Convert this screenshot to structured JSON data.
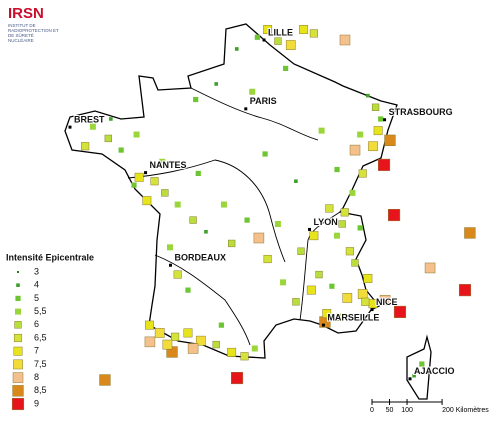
{
  "logo": {
    "name": "IRSN",
    "subtitle": "INSTITUT DE RADIOPROTECTION ET DE SÛRETÉ NUCLÉAIRE"
  },
  "cities": [
    {
      "name": "LILLE",
      "lon": 3.06,
      "lat": 50.63
    },
    {
      "name": "PARIS",
      "lon": 2.35,
      "lat": 48.86
    },
    {
      "name": "BREST",
      "lon": -4.49,
      "lat": 48.39
    },
    {
      "name": "STRASBOURG",
      "lon": 7.75,
      "lat": 48.58
    },
    {
      "name": "NANTES",
      "lon": -1.55,
      "lat": 47.22
    },
    {
      "name": "LYON",
      "lon": 4.83,
      "lat": 45.76
    },
    {
      "name": "BORDEAUX",
      "lon": -0.58,
      "lat": 44.84
    },
    {
      "name": "MARSEILLE",
      "lon": 5.37,
      "lat": 43.3
    },
    {
      "name": "NICE",
      "lon": 7.26,
      "lat": 43.7
    },
    {
      "name": "AJACCIO",
      "lon": 8.74,
      "lat": 41.92
    }
  ],
  "legend": {
    "title": "Intensité Epicentrale",
    "items": [
      {
        "value": 3,
        "color": "#2e7d1e"
      },
      {
        "value": 4,
        "color": "#3fa02a"
      },
      {
        "value": 5,
        "color": "#6cc531"
      },
      {
        "value": {
          "value": 5.5,
          "label": "5,5"
        },
        "color": "#9ad63a"
      },
      {
        "value": 6,
        "color": "#b8dd3c"
      },
      {
        "value": {
          "value": 6.5,
          "label": "6,5"
        },
        "color": "#d4e33a"
      },
      {
        "value": 7,
        "color": "#e8e41c"
      },
      {
        "value": {
          "value": 7.5,
          "label": "7,5"
        },
        "color": "#f2dc3a"
      },
      {
        "value": 8,
        "color": "#f4c08c"
      },
      {
        "value": {
          "value": 8.5,
          "label": "8,5"
        },
        "color": "#d9891c"
      },
      {
        "value": 9,
        "color": "#e8141c"
      }
    ]
  },
  "scale": {
    "ticks": [
      0,
      50,
      100,
      {
        "value": 200,
        "label": "200 Kilomètres"
      }
    ]
  },
  "epicenters": [
    [
      7.73,
      47.42,
      9
    ],
    [
      8.12,
      46.13,
      9
    ],
    [
      2.01,
      41.94,
      9
    ],
    [
      10.88,
      44.2,
      9
    ],
    [
      8.35,
      43.64,
      9
    ],
    [
      7.96,
      48.05,
      8.5
    ],
    [
      11.07,
      45.67,
      8.5
    ],
    [
      5.43,
      43.38,
      8.5
    ],
    [
      -3.13,
      41.89,
      8.5
    ],
    [
      -0.52,
      42.61,
      8.5
    ],
    [
      6.21,
      50.63,
      8
    ],
    [
      6.6,
      47.8,
      8
    ],
    [
      2.86,
      45.54,
      8
    ],
    [
      9.52,
      44.77,
      8
    ],
    [
      -1.38,
      42.87,
      8
    ],
    [
      7.77,
      43.94,
      8
    ],
    [
      6.1,
      45.9,
      6
    ],
    [
      6.4,
      45.2,
      6.5
    ],
    [
      6.9,
      44.1,
      7.5
    ],
    [
      7.3,
      43.85,
      7
    ],
    [
      7.1,
      44.5,
      7
    ],
    [
      6.6,
      44.9,
      6
    ],
    [
      5.9,
      45.6,
      5.5
    ],
    [
      6.2,
      46.2,
      6.5
    ],
    [
      6.8,
      45.8,
      5
    ],
    [
      5.5,
      43.6,
      7
    ],
    [
      6.0,
      43.5,
      6
    ],
    [
      6.3,
      44.0,
      7.5
    ],
    [
      5.7,
      44.3,
      5
    ],
    [
      7.0,
      43.9,
      6.5
    ],
    [
      5.2,
      44.6,
      6
    ],
    [
      4.9,
      44.2,
      7
    ],
    [
      6.5,
      46.7,
      5.5
    ],
    [
      6.9,
      47.2,
      6.5
    ],
    [
      7.5,
      48.3,
      7
    ],
    [
      7.4,
      48.9,
      6
    ],
    [
      7.6,
      48.6,
      5
    ],
    [
      7.3,
      47.9,
      7.5
    ],
    [
      6.8,
      48.2,
      5.5
    ],
    [
      7.1,
      49.2,
      4
    ],
    [
      3.2,
      50.9,
      7
    ],
    [
      3.6,
      50.6,
      6
    ],
    [
      4.1,
      50.5,
      7.5
    ],
    [
      2.8,
      50.7,
      5
    ],
    [
      5.0,
      50.8,
      6.5
    ],
    [
      4.6,
      50.9,
      7
    ],
    [
      2.0,
      50.4,
      4
    ],
    [
      3.9,
      49.9,
      5
    ],
    [
      1.2,
      49.5,
      4
    ],
    [
      2.6,
      49.3,
      5.5
    ],
    [
      0.4,
      49.1,
      5
    ],
    [
      -3.6,
      48.4,
      5.5
    ],
    [
      -3.0,
      48.1,
      6
    ],
    [
      -2.5,
      47.8,
      5
    ],
    [
      -3.9,
      47.9,
      6.5
    ],
    [
      -1.9,
      48.2,
      5.5
    ],
    [
      -2.9,
      48.6,
      4
    ],
    [
      -1.8,
      47.1,
      7
    ],
    [
      -1.2,
      47.0,
      6.5
    ],
    [
      -0.8,
      46.7,
      6
    ],
    [
      -1.5,
      46.5,
      7
    ],
    [
      -0.3,
      46.4,
      5.5
    ],
    [
      -2.0,
      46.9,
      5
    ],
    [
      -0.9,
      47.5,
      5.5
    ],
    [
      0.5,
      47.2,
      5
    ],
    [
      0.3,
      46.0,
      6
    ],
    [
      1.5,
      46.4,
      5.5
    ],
    [
      2.4,
      46.0,
      5
    ],
    [
      1.8,
      45.4,
      6
    ],
    [
      3.2,
      45.0,
      6.5
    ],
    [
      3.6,
      45.9,
      5.5
    ],
    [
      0.8,
      45.7,
      4
    ],
    [
      -0.6,
      45.3,
      5.5
    ],
    [
      -0.3,
      44.6,
      6.5
    ],
    [
      0.1,
      44.2,
      5
    ],
    [
      -1.4,
      43.3,
      7
    ],
    [
      -1.0,
      43.1,
      7.5
    ],
    [
      -0.4,
      43.0,
      6.5
    ],
    [
      0.1,
      43.1,
      7
    ],
    [
      0.6,
      42.9,
      7.5
    ],
    [
      1.2,
      42.8,
      6
    ],
    [
      1.8,
      42.6,
      7
    ],
    [
      2.3,
      42.5,
      6.5
    ],
    [
      2.7,
      42.7,
      5.5
    ],
    [
      -0.7,
      42.8,
      7.5
    ],
    [
      0.3,
      42.7,
      8
    ],
    [
      1.4,
      43.3,
      5
    ],
    [
      4.3,
      43.9,
      6
    ],
    [
      3.8,
      44.4,
      5.5
    ],
    [
      4.5,
      45.2,
      6
    ],
    [
      5.0,
      45.6,
      7
    ],
    [
      5.6,
      46.3,
      6.5
    ],
    [
      5.9,
      47.3,
      5
    ],
    [
      4.3,
      47.0,
      4
    ],
    [
      3.1,
      47.7,
      5
    ],
    [
      5.3,
      48.3,
      5.5
    ],
    [
      9.2,
      42.3,
      5
    ],
    [
      8.9,
      42.0,
      4
    ]
  ]
}
